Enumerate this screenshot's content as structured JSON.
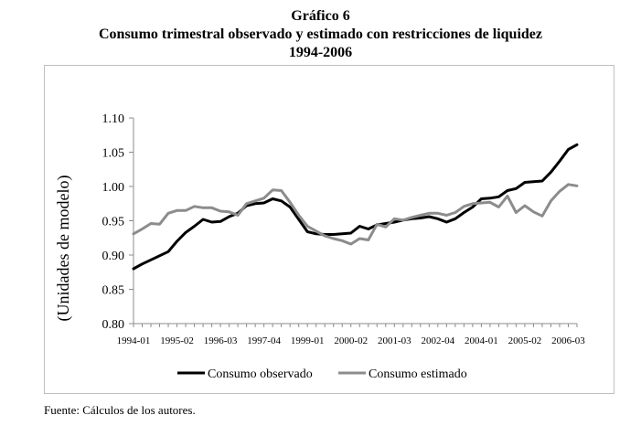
{
  "header": {
    "figure_label": "Gráfico 6",
    "title": "Consumo trimestral observado y estimado con restricciones de liquidez",
    "period": "1994-2006"
  },
  "source_note": "Fuente: Cálculos de los autores.",
  "chart_data": {
    "type": "line",
    "title": "Consumo trimestral observado y estimado con restricciones de liquidez",
    "ylabel": "(Unidades de modelo)",
    "xlabel": "",
    "ylim": [
      0.8,
      1.1
    ],
    "yticks": [
      "1.10",
      "1.05",
      "1.00",
      "0.95",
      "0.90",
      "0.85",
      "0.80"
    ],
    "ytick_values": [
      1.1,
      1.05,
      1.0,
      0.95,
      0.9,
      0.85,
      0.8
    ],
    "xtick_labels": [
      "1994-01",
      "1995-02",
      "1996-03",
      "1997-04",
      "1999-01",
      "2000-02",
      "2001-03",
      "2002-04",
      "2004-01",
      "2005-02",
      "2006-03"
    ],
    "xtick_index": [
      0,
      5,
      10,
      15,
      20,
      25,
      30,
      35,
      40,
      45,
      50
    ],
    "n_points": 52,
    "legend_position": "bottom",
    "series": [
      {
        "name": "Consumo observado",
        "color": "#000000",
        "values": [
          0.88,
          0.887,
          0.893,
          0.899,
          0.905,
          0.92,
          0.933,
          0.942,
          0.952,
          0.948,
          0.949,
          0.956,
          0.961,
          0.972,
          0.975,
          0.976,
          0.982,
          0.979,
          0.97,
          0.952,
          0.934,
          0.931,
          0.93,
          0.93,
          0.931,
          0.932,
          0.942,
          0.938,
          0.944,
          0.946,
          0.948,
          0.951,
          0.953,
          0.954,
          0.956,
          0.953,
          0.948,
          0.953,
          0.962,
          0.97,
          0.982,
          0.983,
          0.985,
          0.994,
          0.997,
          1.006,
          1.007,
          1.008,
          1.021,
          1.037,
          1.054,
          1.061
        ]
      },
      {
        "name": "Consumo estimado",
        "color": "#8c8c8c",
        "values": [
          0.931,
          0.938,
          0.946,
          0.945,
          0.961,
          0.965,
          0.965,
          0.971,
          0.969,
          0.969,
          0.964,
          0.963,
          0.958,
          0.975,
          0.979,
          0.983,
          0.995,
          0.994,
          0.977,
          0.958,
          0.942,
          0.935,
          0.928,
          0.924,
          0.921,
          0.916,
          0.924,
          0.922,
          0.945,
          0.941,
          0.953,
          0.951,
          0.955,
          0.958,
          0.961,
          0.961,
          0.958,
          0.962,
          0.971,
          0.975,
          0.976,
          0.977,
          0.97,
          0.986,
          0.962,
          0.972,
          0.963,
          0.957,
          0.979,
          0.993,
          1.003,
          1.001
        ]
      }
    ]
  }
}
